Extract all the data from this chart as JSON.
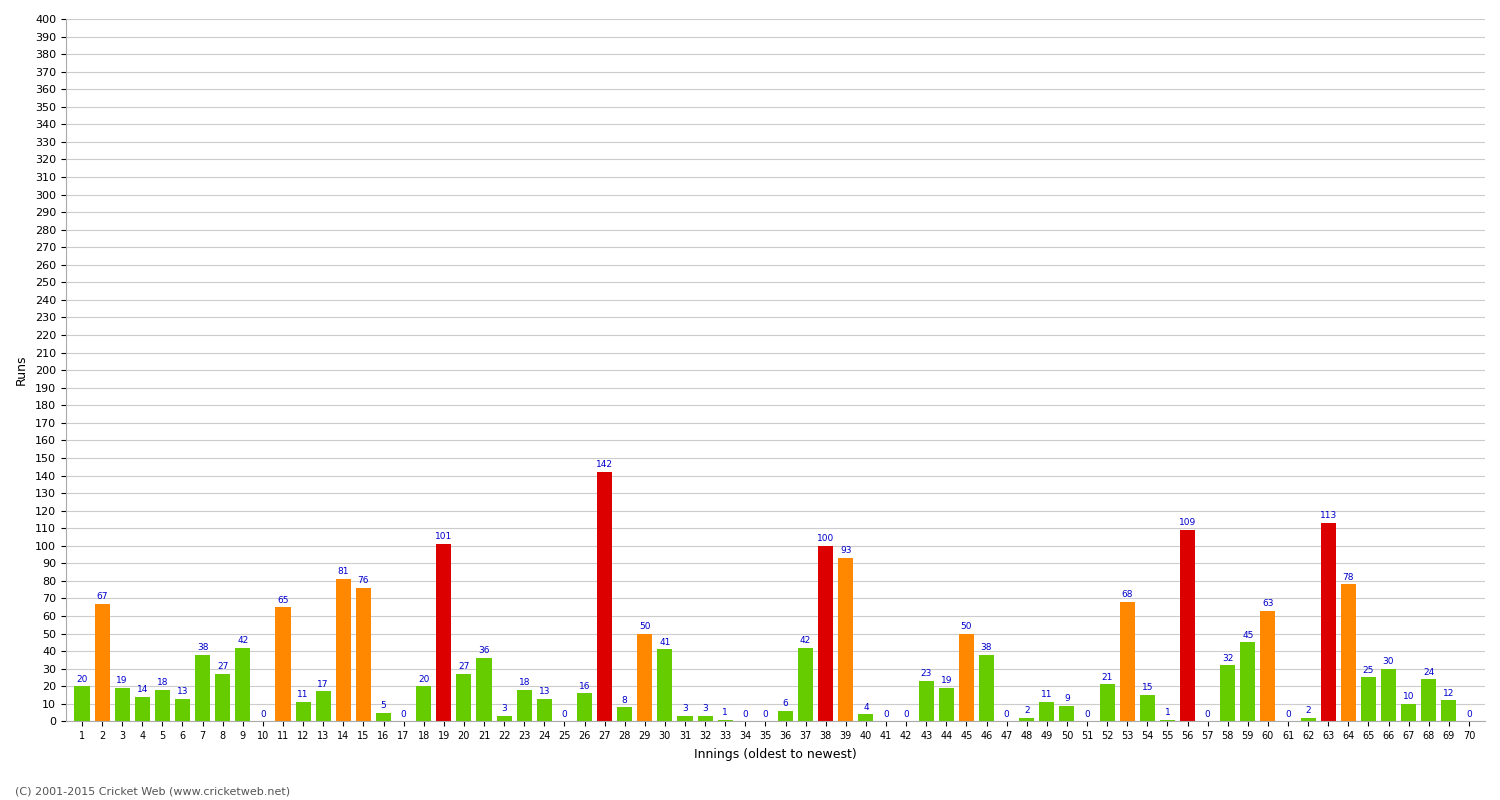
{
  "innings": [
    1,
    2,
    3,
    4,
    5,
    6,
    7,
    8,
    9,
    10,
    11,
    12,
    13,
    14,
    15,
    16,
    17,
    18,
    19,
    20,
    21,
    22,
    23,
    24,
    25,
    26,
    27,
    28,
    29,
    30,
    31,
    32,
    33,
    34,
    35,
    36,
    37,
    38,
    39,
    40,
    41,
    42,
    43,
    44,
    45,
    46,
    47,
    48,
    49,
    50,
    51,
    52,
    53,
    54,
    55,
    56,
    57,
    58,
    59,
    60,
    61,
    62
  ],
  "scores": [
    20,
    67,
    19,
    14,
    18,
    13,
    38,
    27,
    42,
    0,
    65,
    11,
    17,
    81,
    76,
    5,
    0,
    20,
    101,
    27,
    36,
    3,
    18,
    13,
    0,
    16,
    142,
    8,
    50,
    41,
    3,
    3,
    1,
    0,
    0,
    6,
    42,
    100,
    93,
    4,
    0,
    0,
    23,
    19,
    50,
    38,
    0,
    2,
    11,
    9,
    0,
    21,
    68,
    15,
    1,
    109,
    0,
    32,
    45,
    63,
    0,
    2
  ],
  "not_out": [
    false,
    false,
    false,
    false,
    false,
    false,
    false,
    false,
    false,
    false,
    false,
    false,
    false,
    false,
    false,
    false,
    false,
    false,
    false,
    false,
    false,
    false,
    false,
    false,
    false,
    false,
    false,
    false,
    false,
    false,
    false,
    false,
    false,
    false,
    false,
    false,
    false,
    false,
    false,
    false,
    false,
    false,
    false,
    false,
    false,
    false,
    false,
    false,
    false,
    false,
    false,
    false,
    false,
    false,
    false,
    false,
    false,
    false,
    false,
    false,
    false,
    false
  ],
  "title": "",
  "xlabel": "Innings (oldest to newest)",
  "ylabel": "Runs",
  "color_low": "#66cc00",
  "color_mid": "#ff8800",
  "color_high": "#dd0000",
  "background_color": "#ffffff",
  "grid_color": "#cccccc",
  "label_color": "#0000cc",
  "footer": "(C) 2001-2015 Cricket Web (www.cricketweb.net)",
  "ylim": [
    0,
    400
  ],
  "ytick_step": 10,
  "innings_full": [
    1,
    2,
    3,
    4,
    5,
    6,
    7,
    8,
    9,
    10,
    11,
    12,
    13,
    14,
    15,
    16,
    17,
    18,
    19,
    20,
    21,
    22,
    23,
    24,
    25,
    26,
    27,
    28,
    29,
    30,
    31,
    32,
    33,
    34,
    35,
    36,
    37,
    38,
    39,
    40,
    41,
    42,
    43,
    44,
    45,
    46,
    47,
    48,
    49,
    50,
    51,
    52,
    53,
    54,
    55,
    56,
    57,
    58,
    59,
    60,
    61,
    62,
    63,
    64,
    65,
    66,
    67,
    68,
    69,
    70
  ],
  "scores_full": [
    20,
    67,
    19,
    14,
    18,
    13,
    38,
    27,
    42,
    0,
    65,
    11,
    17,
    81,
    76,
    5,
    0,
    20,
    101,
    27,
    36,
    3,
    18,
    13,
    0,
    16,
    142,
    8,
    50,
    41,
    3,
    3,
    1,
    0,
    0,
    6,
    42,
    100,
    93,
    4,
    0,
    0,
    23,
    19,
    50,
    38,
    0,
    2,
    11,
    9,
    0,
    21,
    68,
    15,
    1,
    109,
    0,
    32,
    45,
    63,
    0,
    2,
    113,
    78,
    25,
    30,
    10,
    24,
    12,
    0
  ]
}
